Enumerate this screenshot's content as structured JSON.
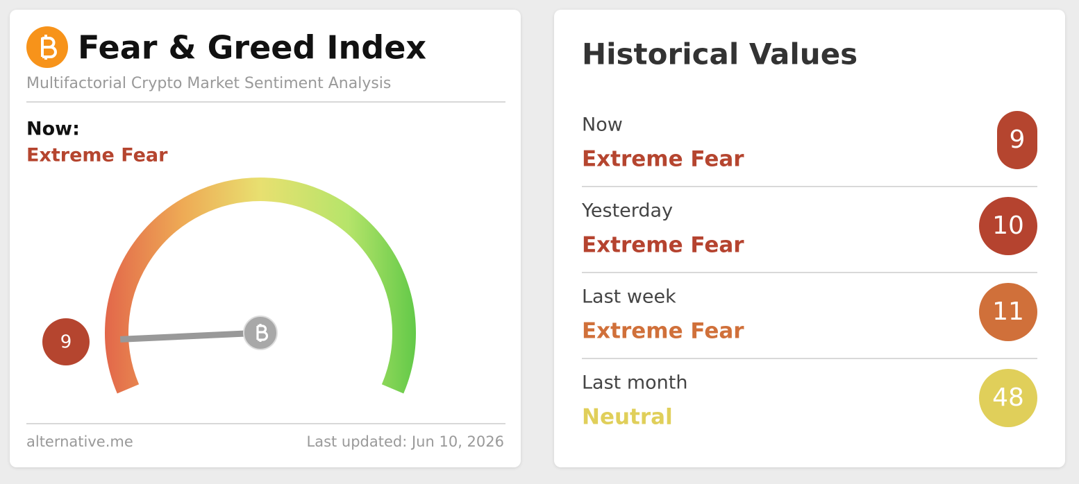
{
  "header": {
    "title": "Fear & Greed Index",
    "subtitle": "Multifactorial Crypto Market Sentiment Analysis"
  },
  "now": {
    "label": "Now:",
    "classification": "Extreme Fear"
  },
  "gauge": {
    "value": 9,
    "range": [
      0,
      100
    ]
  },
  "footer": {
    "source": "alternative.me",
    "updated": "Last updated: Jun 10, 2026"
  },
  "historical": {
    "title": "Historical Values",
    "rows": [
      {
        "label": "Now",
        "classification": "Extreme Fear",
        "value": 9,
        "color": "#b5452f"
      },
      {
        "label": "Yesterday",
        "classification": "Extreme Fear",
        "value": 10,
        "color": "#b5432f"
      },
      {
        "label": "Last week",
        "classification": "Extreme Fear",
        "value": 11,
        "color": "#d0703a"
      },
      {
        "label": "Last month",
        "classification": "Neutral",
        "value": 48,
        "color": "#e0cf5a"
      }
    ]
  }
}
